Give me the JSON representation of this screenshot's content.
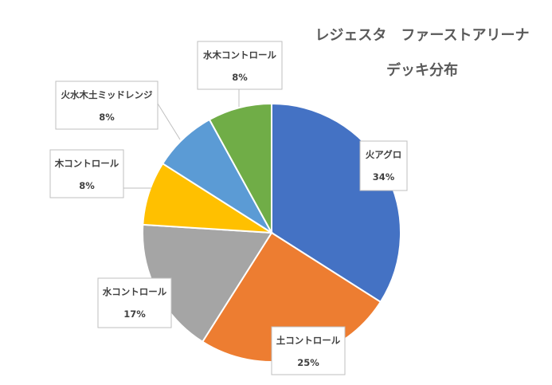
{
  "chart_data": {
    "type": "pie",
    "title_line1": "レジェスタ　ファーストアリーナ",
    "title_line2": "デッキ分布",
    "slices": [
      {
        "label": "火アグロ",
        "value": 34,
        "percent_label": "34%",
        "color": "#4472C4"
      },
      {
        "label": "土コントロール",
        "value": 25,
        "percent_label": "25%",
        "color": "#ED7D31"
      },
      {
        "label": "水コントロール",
        "value": 17,
        "percent_label": "17%",
        "color": "#A5A5A5"
      },
      {
        "label": "木コントロール",
        "value": 8,
        "percent_label": "8%",
        "color": "#FFC000"
      },
      {
        "label": "火水木土ミッドレンジ",
        "value": 8,
        "percent_label": "8%",
        "color": "#5B9BD5"
      },
      {
        "label": "水木コントロール",
        "value": 8,
        "percent_label": "8%",
        "color": "#70AD47"
      }
    ],
    "legend": "none"
  }
}
